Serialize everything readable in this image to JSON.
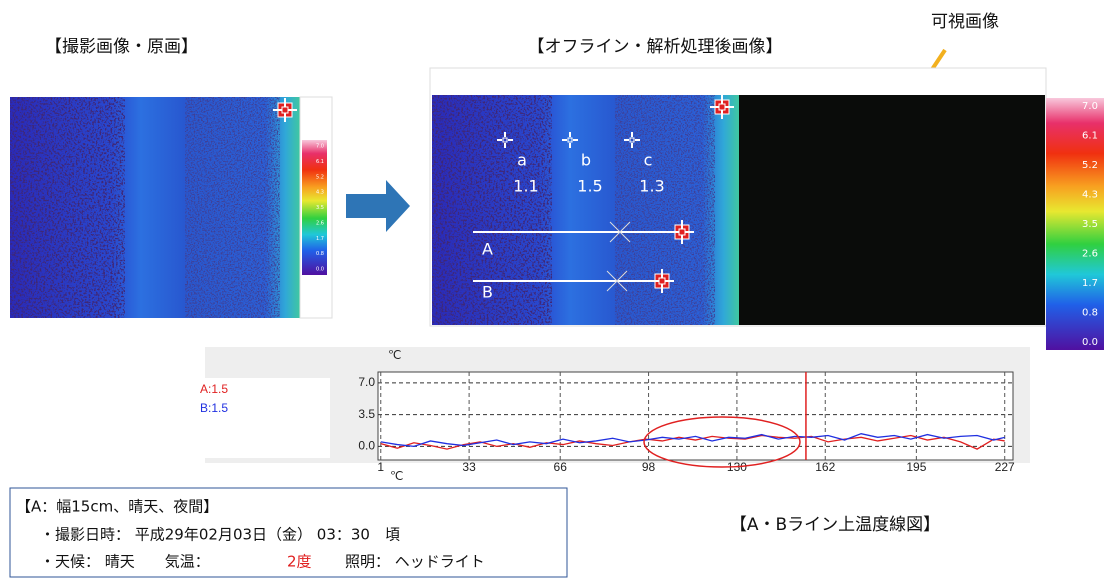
{
  "left_title": "【撮影画像・原画】",
  "right_title": "【オフライン・解析処理後画像】",
  "visible_label": "可視画像",
  "left_colorbar": {
    "labels": [
      "7.0",
      "6.1",
      "5.2",
      "4.3",
      "3.5",
      "2.6",
      "1.7",
      "0.8",
      "0.0"
    ]
  },
  "right_colorbar": {
    "labels": [
      "7.0",
      "6.1",
      "5.2",
      "4.3",
      "3.5",
      "2.6",
      "1.7",
      "0.8",
      "0.0"
    ]
  },
  "points": [
    {
      "label": "a",
      "value": 1.1
    },
    {
      "label": "b",
      "value": 1.5
    },
    {
      "label": "c",
      "value": 1.3
    }
  ],
  "lines": [
    "A",
    "B"
  ],
  "chart_data": {
    "type": "line",
    "title": "【A・Bライン上温度線図】",
    "unit_labels": [
      "℃",
      "℃"
    ],
    "x": [
      1,
      7,
      13,
      19,
      25,
      31,
      37,
      43,
      49,
      55,
      61,
      67,
      73,
      79,
      85,
      91,
      97,
      103,
      109,
      115,
      121,
      127,
      133,
      139,
      145,
      151,
      157,
      163,
      169,
      175,
      181,
      187,
      193,
      199,
      205,
      211,
      217,
      223,
      227
    ],
    "series": [
      {
        "name": "A:1.5",
        "color": "#e02020",
        "values": [
          0.3,
          -0.2,
          0.4,
          0.1,
          -0.3,
          0.2,
          0.5,
          0.0,
          0.3,
          -0.1,
          0.4,
          0.2,
          0.6,
          0.3,
          0.1,
          0.5,
          0.8,
          0.6,
          1.0,
          0.7,
          1.1,
          0.9,
          0.8,
          1.2,
          1.0,
          0.9,
          1.1,
          0.5,
          0.8,
          1.0,
          0.6,
          0.9,
          1.2,
          0.7,
          1.0,
          0.5,
          -0.3,
          0.8,
          0.6
        ]
      },
      {
        "name": "B:1.5",
        "color": "#2030e0",
        "values": [
          0.5,
          0.2,
          0.0,
          0.6,
          0.3,
          0.1,
          0.4,
          0.7,
          0.2,
          0.5,
          0.3,
          0.8,
          0.4,
          0.6,
          0.9,
          0.5,
          0.7,
          1.0,
          0.8,
          1.1,
          0.6,
          1.0,
          0.9,
          1.3,
          0.8,
          1.1,
          1.0,
          1.2,
          0.7,
          1.4,
          1.0,
          1.2,
          0.8,
          1.3,
          0.9,
          1.1,
          1.2,
          0.7,
          1.0
        ]
      }
    ],
    "xlim": [
      0,
      230
    ],
    "xticks": [
      1,
      33,
      66,
      98,
      130,
      162,
      195,
      227
    ],
    "ylim": [
      -1.5,
      8.2
    ],
    "yticks": [
      {
        "value": 7,
        "label": "7.0"
      },
      {
        "value": 3.5,
        "label": "3.5"
      },
      {
        "value": 0,
        "label": "0.0"
      }
    ],
    "grid": true,
    "cursor_x": 155
  },
  "info": {
    "heading": "【A：幅15cm、晴天、夜間】",
    "date": "・撮影日時： 平成29年02月03日（金） 03：30　頃",
    "weather": "・天候： 晴天　　気温：",
    "temp": "2度",
    "light": "照明： ヘッドライト"
  }
}
